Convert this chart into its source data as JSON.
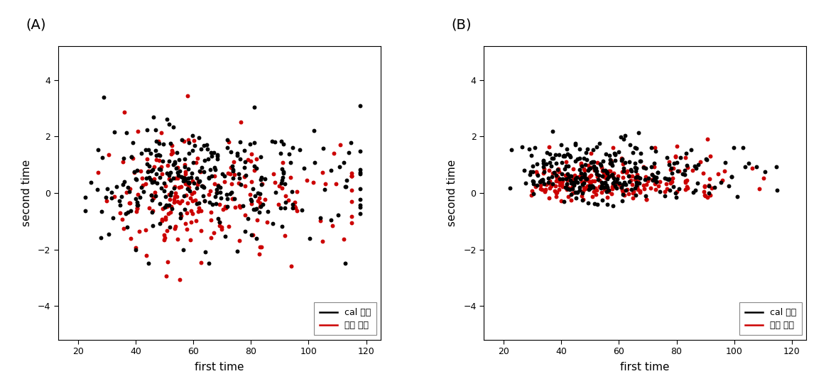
{
  "title_A": "(A)",
  "title_B": "(B)",
  "xlabel": "first time",
  "ylabel": "second time",
  "xlim": [
    13,
    125
  ],
  "ylim": [
    -5.2,
    5.2
  ],
  "yticks": [
    -4,
    -2,
    0,
    2,
    4
  ],
  "xticks": [
    20,
    40,
    60,
    80,
    100,
    120
  ],
  "legend_labels": [
    "cal 변화",
    "시약 변화"
  ],
  "legend_colors": [
    "#000000",
    "#cc0000"
  ],
  "dot_size": 18,
  "background_color": "#ffffff",
  "n_black": 300,
  "n_red": 220
}
